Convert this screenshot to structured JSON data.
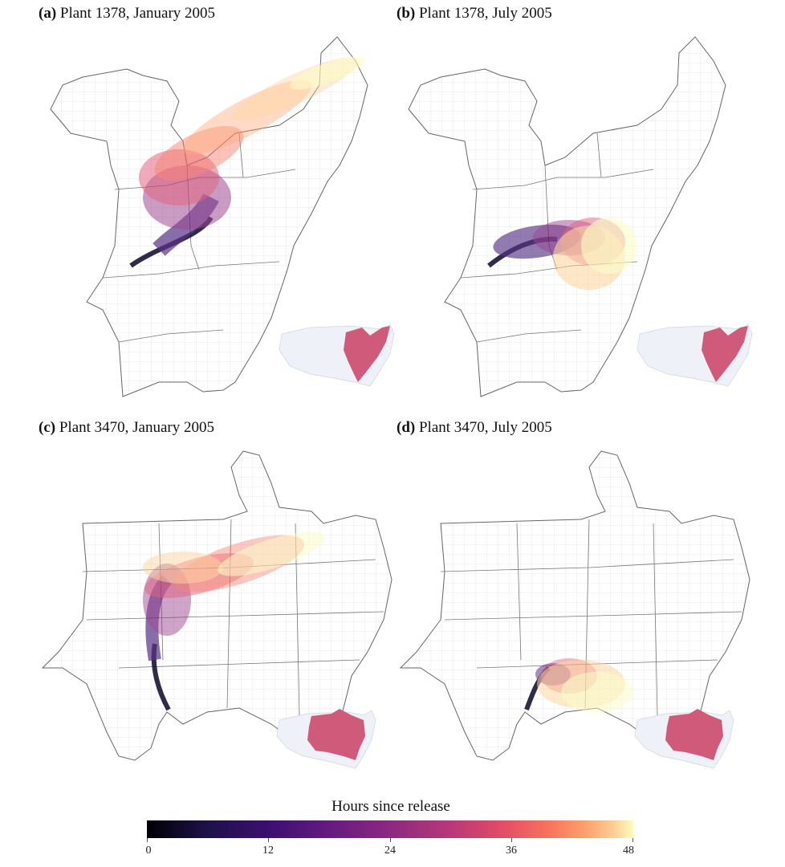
{
  "panels": [
    {
      "id": "a",
      "tag": "(a)",
      "title": "Plant 1378, January 2005"
    },
    {
      "id": "b",
      "tag": "(b)",
      "title": "Plant 1378, July 2005"
    },
    {
      "id": "c",
      "tag": "(c)",
      "title": "Plant 3470, January 2005"
    },
    {
      "id": "d",
      "tag": "(d)",
      "title": "Plant 3470, July 2005"
    }
  ],
  "legend": {
    "title": "Hours since release",
    "ticks": [
      "0",
      "12",
      "24",
      "36",
      "48"
    ],
    "range": [
      0,
      48
    ]
  },
  "colors": {
    "inset_highlight": "#cf5a79",
    "inset_base": "#eef1f7",
    "county_lines": "#cccccc",
    "state_lines": "#666666"
  }
}
